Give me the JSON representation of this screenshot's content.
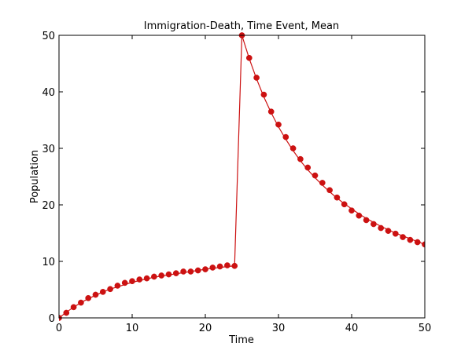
{
  "chart_data": {
    "type": "line",
    "title": "Immigration-Death, Time Event, Mean",
    "xlabel": "Time",
    "ylabel": "Population",
    "xlim": [
      0,
      50
    ],
    "ylim": [
      0,
      50
    ],
    "xticks": [
      "0",
      "10",
      "20",
      "30",
      "40",
      "50"
    ],
    "yticks": [
      "0",
      "10",
      "20",
      "30",
      "40",
      "50"
    ],
    "grid": false,
    "series": [
      {
        "style": "line",
        "color": "#cc1111",
        "x": [
          0,
          1,
          2,
          3,
          4,
          5,
          6,
          7,
          8,
          9,
          10,
          11,
          12,
          13,
          14,
          15,
          16,
          17,
          18,
          19,
          20,
          21,
          22,
          23,
          24,
          25,
          26,
          27,
          28,
          29,
          30,
          31,
          32,
          33,
          34,
          35,
          36,
          37,
          38,
          39,
          40,
          41,
          42,
          43,
          44,
          45,
          46,
          47,
          48,
          49,
          50
        ],
        "y": [
          0,
          1.0,
          1.9,
          2.7,
          3.4,
          4.0,
          4.6,
          5.1,
          5.5,
          5.9,
          6.3,
          6.6,
          6.9,
          7.2,
          7.4,
          7.6,
          7.8,
          8.0,
          8.2,
          8.4,
          8.6,
          8.8,
          8.9,
          9.1,
          9.2,
          50.0,
          45.9,
          42.3,
          39.1,
          36.3,
          33.8,
          31.6,
          29.6,
          27.8,
          26.2,
          24.8,
          23.5,
          22.3,
          21.2,
          20.2,
          19.3,
          18.4,
          17.6,
          16.9,
          16.2,
          15.6,
          15.0,
          14.5,
          14.0,
          13.5,
          13.0
        ]
      },
      {
        "style": "markers",
        "color": "#cc1111",
        "x": [
          0,
          1,
          2,
          3,
          4,
          5,
          6,
          7,
          8,
          9,
          10,
          11,
          12,
          13,
          14,
          15,
          16,
          17,
          18,
          19,
          20,
          21,
          22,
          23,
          24,
          25,
          26,
          27,
          28,
          29,
          30,
          31,
          32,
          33,
          34,
          35,
          36,
          37,
          38,
          39,
          40,
          41,
          42,
          43,
          44,
          45,
          46,
          47,
          48,
          49,
          50
        ],
        "y": [
          0,
          0.9,
          1.9,
          2.7,
          3.5,
          4.1,
          4.6,
          5.1,
          5.7,
          6.2,
          6.5,
          6.8,
          7.0,
          7.3,
          7.5,
          7.7,
          7.9,
          8.2,
          8.2,
          8.4,
          8.6,
          8.9,
          9.1,
          9.3,
          9.2,
          50.0,
          46.0,
          42.5,
          39.5,
          36.5,
          34.2,
          32.0,
          30.0,
          28.1,
          26.6,
          25.2,
          23.9,
          22.6,
          21.3,
          20.1,
          19.0,
          18.1,
          17.3,
          16.6,
          15.9,
          15.4,
          14.9,
          14.3,
          13.8,
          13.4,
          13.0
        ]
      }
    ]
  }
}
